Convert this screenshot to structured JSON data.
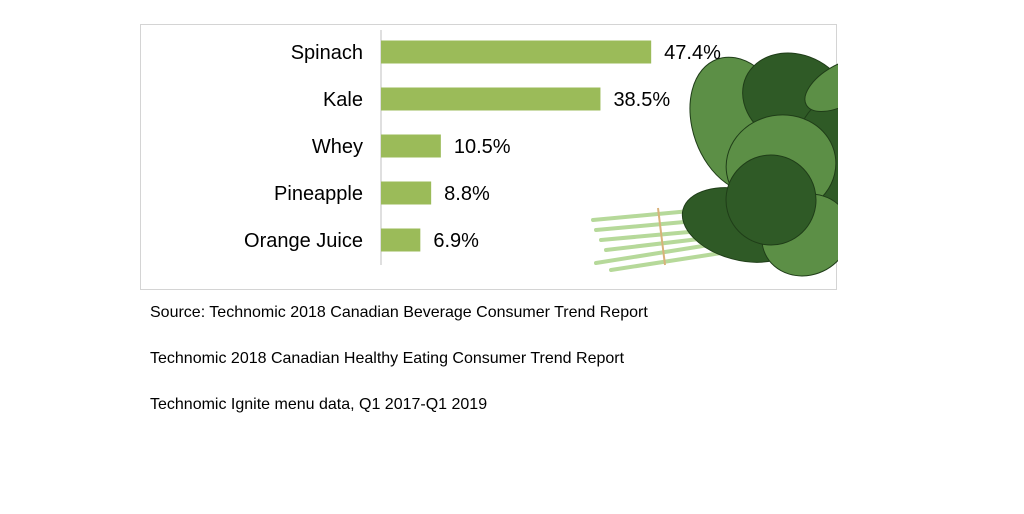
{
  "chart_data": {
    "type": "bar",
    "orientation": "horizontal",
    "categories": [
      "Spinach",
      "Kale",
      "Whey",
      "Pineapple",
      "Orange Juice"
    ],
    "values": [
      47.4,
      38.5,
      10.5,
      8.8,
      6.9
    ],
    "value_labels": [
      "47.4%",
      "38.5%",
      "10.5%",
      "8.8%",
      "6.9%"
    ],
    "xlim": [
      0,
      60
    ],
    "grid": false,
    "bar_color": "#9bbb59",
    "axis_color": "#bfbfbf"
  },
  "decoration": {
    "image": "spinach-bunch-icon",
    "leaf_dark": "#2f5a26",
    "leaf_light": "#5c8f46",
    "stem": "#b6d99a"
  },
  "sources": [
    "Source: Technomic 2018 Canadian Beverage Consumer Trend Report",
    "Technomic 2018 Canadian Healthy Eating Consumer Trend Report",
    "Technomic Ignite menu data, Q1 2017-Q1 2019"
  ]
}
